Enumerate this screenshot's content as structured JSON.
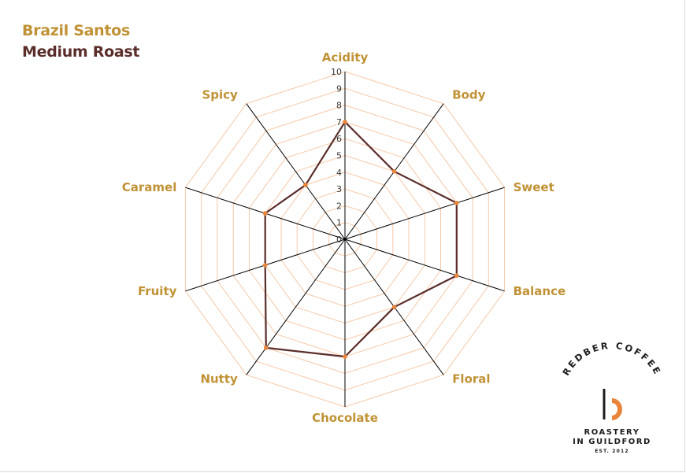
{
  "header": {
    "title_line1": "Brazil Santos",
    "title_line2": "Medium Roast"
  },
  "chart_data": {
    "type": "radar",
    "title": "Brazil Santos Medium Roast",
    "categories": [
      "Acidity",
      "Body",
      "Sweet",
      "Balance",
      "Floral",
      "Chocolate",
      "Nutty",
      "Fruity",
      "Caramel",
      "Spicy"
    ],
    "series": [
      {
        "values": [
          7,
          5,
          7,
          7,
          5,
          7,
          8,
          5,
          5,
          4
        ]
      }
    ],
    "range": [
      0,
      10
    ],
    "ticks": [
      "0",
      "1",
      "2",
      "3",
      "4",
      "5",
      "6",
      "7",
      "8",
      "9",
      "10"
    ],
    "grid": true,
    "colors": {
      "series_line": "#5a2d2a",
      "series_marker": "#e8853a",
      "grid": "#f6c9a9",
      "axis": "#000000",
      "label": "#c09235"
    }
  },
  "logo": {
    "arc_text": "REDBER COFFEE",
    "line1": "ROASTERY",
    "line2": "IN GUILDFORD",
    "line3": "EST. 2012",
    "mark": "b"
  }
}
